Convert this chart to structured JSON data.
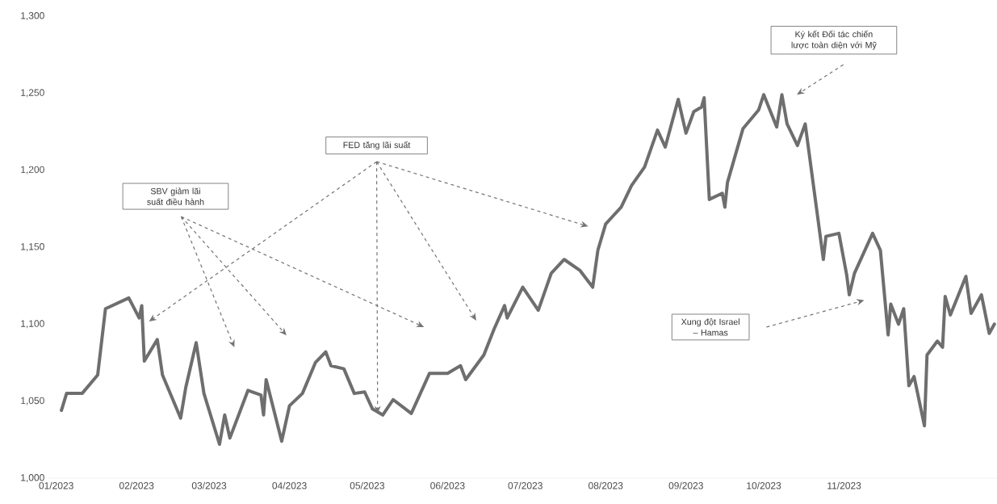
{
  "chart_data": {
    "type": "line",
    "x": [
      "2023-01-03",
      "2023-01-05",
      "2023-01-11",
      "2023-01-17",
      "2023-01-20",
      "2023-01-29",
      "2023-02-02",
      "2023-02-03",
      "2023-02-04",
      "2023-02-09",
      "2023-02-11",
      "2023-02-18",
      "2023-02-20",
      "2023-02-24",
      "2023-02-27",
      "2023-03-05",
      "2023-03-07",
      "2023-03-09",
      "2023-03-16",
      "2023-03-21",
      "2023-03-22",
      "2023-03-23",
      "2023-03-29",
      "2023-04-01",
      "2023-04-06",
      "2023-04-11",
      "2023-04-15",
      "2023-04-17",
      "2023-04-22",
      "2023-04-26",
      "2023-04-30",
      "2023-05-03",
      "2023-05-07",
      "2023-05-11",
      "2023-05-18",
      "2023-05-25",
      "2023-06-01",
      "2023-06-06",
      "2023-06-08",
      "2023-06-15",
      "2023-06-19",
      "2023-06-23",
      "2023-06-24",
      "2023-06-30",
      "2023-07-06",
      "2023-07-11",
      "2023-07-16",
      "2023-07-22",
      "2023-07-27",
      "2023-07-29",
      "2023-08-01",
      "2023-08-07",
      "2023-08-11",
      "2023-08-16",
      "2023-08-21",
      "2023-08-24",
      "2023-08-29",
      "2023-09-01",
      "2023-09-04",
      "2023-09-07",
      "2023-09-08",
      "2023-09-10",
      "2023-09-15",
      "2023-09-16",
      "2023-09-17",
      "2023-09-23",
      "2023-09-29",
      "2023-10-01",
      "2023-10-06",
      "2023-10-08",
      "2023-10-10",
      "2023-10-14",
      "2023-10-17",
      "2023-10-24",
      "2023-10-25",
      "2023-10-30",
      "2023-11-02",
      "2023-11-03",
      "2023-11-05",
      "2023-11-12",
      "2023-11-15",
      "2023-11-18",
      "2023-11-19",
      "2023-11-22",
      "2023-11-24",
      "2023-11-26",
      "2023-11-28",
      "2023-12-02",
      "2023-12-03",
      "2023-12-07",
      "2023-12-09",
      "2023-12-10",
      "2023-12-12",
      "2023-12-18",
      "2023-12-20",
      "2023-12-24",
      "2023-12-27",
      "2023-12-29"
    ],
    "series": [
      {
        "color": "#6e6e6e",
        "values": [
          1044,
          1055,
          1055,
          1067,
          1110,
          1117,
          1104,
          1112,
          1076,
          1090,
          1067,
          1039,
          1059,
          1088,
          1055,
          1022,
          1041,
          1026,
          1057,
          1054,
          1041,
          1064,
          1024,
          1047,
          1055,
          1075,
          1082,
          1073,
          1071,
          1055,
          1056,
          1045,
          1041,
          1051,
          1042,
          1068,
          1068,
          1073,
          1064,
          1080,
          1097,
          1112,
          1104,
          1124,
          1109,
          1133,
          1142,
          1135,
          1124,
          1148,
          1165,
          1176,
          1190,
          1202,
          1226,
          1215,
          1246,
          1224,
          1238,
          1241,
          1247,
          1181,
          1185,
          1176,
          1192,
          1227,
          1239,
          1249,
          1228,
          1249,
          1230,
          1216,
          1230,
          1142,
          1157,
          1159,
          1132,
          1119,
          1133,
          1159,
          1148,
          1093,
          1113,
          1100,
          1110,
          1060,
          1066,
          1034,
          1080,
          1089,
          1085,
          1118,
          1106,
          1131,
          1107,
          1119,
          1094,
          1100
        ]
      }
    ],
    "xlim": [
      "2022-12-29",
      "2023-12-30"
    ],
    "ylim": [
      1000,
      1300
    ],
    "xticks": [
      {
        "value": "2023-01-01",
        "label": "01/2023"
      },
      {
        "value": "2023-02-01",
        "label": "02/2023"
      },
      {
        "value": "2023-03-01",
        "label": "03/2023"
      },
      {
        "value": "2023-04-01",
        "label": "04/2023"
      },
      {
        "value": "2023-05-01",
        "label": "05/2023"
      },
      {
        "value": "2023-06-01",
        "label": "06/2023"
      },
      {
        "value": "2023-07-01",
        "label": "07/2023"
      },
      {
        "value": "2023-08-01",
        "label": "08/2023"
      },
      {
        "value": "2023-09-01",
        "label": "09/2023"
      },
      {
        "value": "2023-10-01",
        "label": "10/2023"
      },
      {
        "value": "2023-11-01",
        "label": "11/2023"
      }
    ],
    "yticks": [
      {
        "value": 1000,
        "label": "1,000"
      },
      {
        "value": 1050,
        "label": "1,050"
      },
      {
        "value": 1100,
        "label": "1,100"
      },
      {
        "value": 1150,
        "label": "1,150"
      },
      {
        "value": 1200,
        "label": "1,200"
      },
      {
        "value": 1250,
        "label": "1,250"
      },
      {
        "value": 1300,
        "label": "1,300"
      }
    ],
    "annotations": [
      "SBV giảm lãi suất điều hành",
      "FED tăng lãi suất",
      "Ký kết Đối tác chiến lược toàn diện với Mỹ",
      "Xung đột Israel – Hamas"
    ],
    "line_style": "solid",
    "marker": "none",
    "grid": false
  }
}
